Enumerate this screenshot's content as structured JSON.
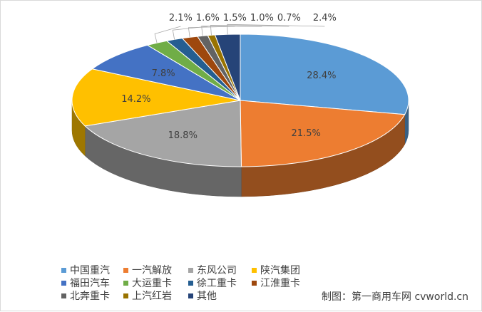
{
  "chart_data": {
    "type": "pie",
    "title": "",
    "style": "3d",
    "slices": [
      {
        "name": "中国重汽",
        "value": 28.4,
        "label": "28.4%",
        "color": "#5b9bd5"
      },
      {
        "name": "一汽解放",
        "value": 21.5,
        "label": "21.5%",
        "color": "#ed7d31"
      },
      {
        "name": "东风公司",
        "value": 18.8,
        "label": "18.8%",
        "color": "#a5a5a5"
      },
      {
        "name": "陕汽集团",
        "value": 14.2,
        "label": "14.2%",
        "color": "#ffc000"
      },
      {
        "name": "福田汽车",
        "value": 7.8,
        "label": "7.8%",
        "color": "#4472c4"
      },
      {
        "name": "大运重卡",
        "value": 2.1,
        "label": "2.1%",
        "color": "#70ad47"
      },
      {
        "name": "徐工重卡",
        "value": 1.6,
        "label": "1.6%",
        "color": "#255e91"
      },
      {
        "name": "江淮重卡",
        "value": 1.5,
        "label": "1.5%",
        "color": "#9e480e"
      },
      {
        "name": "北奔重卡",
        "value": 1.0,
        "label": "1.0%",
        "color": "#636363"
      },
      {
        "name": "上汽红岩",
        "value": 0.7,
        "label": "0.7%",
        "color": "#997300"
      },
      {
        "name": "其他",
        "value": 2.4,
        "label": "2.4%",
        "color": "#264478"
      }
    ],
    "legend": "bottom"
  },
  "credit": "制图：第一商用车网 cvworld.cn"
}
